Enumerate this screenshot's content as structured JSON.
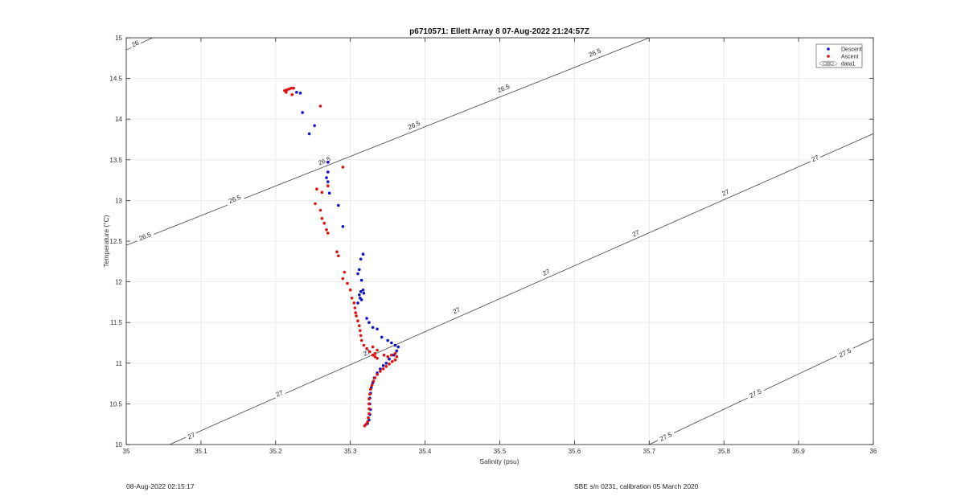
{
  "chart_data": {
    "type": "scatter",
    "title": "p6710571: Ellett Array 8 07-Aug-2022 21:24:57Z",
    "xlabel": "Salinity (psu)",
    "ylabel": "Temperature (°C)",
    "xlim": [
      35,
      36
    ],
    "ylim": [
      10,
      15
    ],
    "xticks": [
      "35",
      "35.1",
      "35.2",
      "35.3",
      "35.4",
      "35.5",
      "35.6",
      "35.7",
      "35.8",
      "35.9",
      "36"
    ],
    "yticks": [
      "10",
      "10.5",
      "11",
      "11.5",
      "12",
      "12.5",
      "13",
      "13.5",
      "14",
      "14.5",
      "15"
    ],
    "grid": true,
    "legend_position": "top-right",
    "colors": {
      "descent": "#1010c8",
      "ascent": "#e01010",
      "contour": "#444444"
    },
    "contour_lines": [
      {
        "level": "26",
        "points": [
          [
            35.0,
            14.85
          ],
          [
            35.035,
            15.0
          ]
        ]
      },
      {
        "level": "26.5",
        "points": [
          [
            35.0,
            12.45
          ],
          [
            35.7,
            15.0
          ]
        ]
      },
      {
        "level": "27",
        "points": [
          [
            35.058,
            10.0
          ],
          [
            36.0,
            13.82
          ]
        ]
      },
      {
        "level": "27.5",
        "points": [
          [
            35.7,
            10.0
          ],
          [
            36.0,
            11.3
          ]
        ]
      }
    ],
    "contour_labels": [
      {
        "text": "26",
        "x": 35.012,
        "y": 14.93
      },
      {
        "text": "26.5",
        "x": 35.025,
        "y": 12.56
      },
      {
        "text": "26.5",
        "x": 35.145,
        "y": 13.02
      },
      {
        "text": "26.5",
        "x": 35.265,
        "y": 13.49
      },
      {
        "text": "26.5",
        "x": 35.385,
        "y": 13.93
      },
      {
        "text": "26.5",
        "x": 35.505,
        "y": 14.38
      },
      {
        "text": "26.5",
        "x": 35.627,
        "y": 14.82
      },
      {
        "text": "27",
        "x": 35.087,
        "y": 10.11
      },
      {
        "text": "27",
        "x": 35.205,
        "y": 10.63
      },
      {
        "text": "27",
        "x": 35.322,
        "y": 11.13
      },
      {
        "text": "27",
        "x": 35.442,
        "y": 11.65
      },
      {
        "text": "27",
        "x": 35.562,
        "y": 12.12
      },
      {
        "text": "27",
        "x": 35.682,
        "y": 12.6
      },
      {
        "text": "27",
        "x": 35.802,
        "y": 13.1
      },
      {
        "text": "27",
        "x": 35.922,
        "y": 13.52
      },
      {
        "text": "27.5",
        "x": 35.722,
        "y": 10.1
      },
      {
        "text": "27.5",
        "x": 35.842,
        "y": 10.63
      },
      {
        "text": "27.5",
        "x": 35.962,
        "y": 11.13
      }
    ],
    "series": [
      {
        "name": "Descent",
        "points": [
          [
            35.228,
            14.33
          ],
          [
            35.233,
            14.32
          ],
          [
            35.236,
            14.08
          ],
          [
            35.252,
            13.92
          ],
          [
            35.245,
            13.82
          ],
          [
            35.27,
            13.47
          ],
          [
            35.27,
            13.35
          ],
          [
            35.268,
            13.28
          ],
          [
            35.27,
            13.23
          ],
          [
            35.272,
            13.09
          ],
          [
            35.284,
            12.94
          ],
          [
            35.29,
            12.68
          ],
          [
            35.317,
            12.34
          ],
          [
            35.314,
            12.28
          ],
          [
            35.312,
            12.15
          ],
          [
            35.31,
            12.1
          ],
          [
            35.315,
            12.02
          ],
          [
            35.317,
            11.9
          ],
          [
            35.314,
            11.88
          ],
          [
            35.318,
            11.86
          ],
          [
            35.312,
            11.84
          ],
          [
            35.313,
            11.8
          ],
          [
            35.315,
            11.78
          ],
          [
            35.31,
            11.74
          ],
          [
            35.322,
            11.55
          ],
          [
            35.325,
            11.5
          ],
          [
            35.33,
            11.44
          ],
          [
            35.336,
            11.42
          ],
          [
            35.342,
            11.32
          ],
          [
            35.35,
            11.28
          ],
          [
            35.355,
            11.25
          ],
          [
            35.36,
            11.22
          ],
          [
            35.364,
            11.2
          ],
          [
            35.362,
            11.15
          ],
          [
            35.358,
            11.1
          ],
          [
            35.352,
            11.05
          ],
          [
            35.348,
            11.0
          ],
          [
            35.344,
            10.97
          ],
          [
            35.34,
            10.93
          ],
          [
            35.336,
            10.88
          ],
          [
            35.332,
            10.82
          ],
          [
            35.33,
            10.76
          ],
          [
            35.328,
            10.7
          ],
          [
            35.327,
            10.63
          ],
          [
            35.326,
            10.57
          ],
          [
            35.326,
            10.5
          ],
          [
            35.327,
            10.43
          ],
          [
            35.326,
            10.37
          ],
          [
            35.325,
            10.3
          ],
          [
            35.323,
            10.26
          ]
        ]
      },
      {
        "name": "Ascent",
        "points": [
          [
            35.212,
            14.35
          ],
          [
            35.215,
            14.36
          ],
          [
            35.218,
            14.37
          ],
          [
            35.221,
            14.38
          ],
          [
            35.224,
            14.38
          ],
          [
            35.214,
            14.33
          ],
          [
            35.222,
            14.3
          ],
          [
            35.26,
            14.16
          ],
          [
            35.29,
            13.41
          ],
          [
            35.255,
            13.14
          ],
          [
            35.262,
            13.1
          ],
          [
            35.27,
            13.18
          ],
          [
            35.253,
            12.96
          ],
          [
            35.26,
            12.88
          ],
          [
            35.262,
            12.78
          ],
          [
            35.265,
            12.72
          ],
          [
            35.268,
            12.64
          ],
          [
            35.27,
            12.6
          ],
          [
            35.282,
            12.37
          ],
          [
            35.284,
            12.32
          ],
          [
            35.292,
            12.12
          ],
          [
            35.29,
            12.04
          ],
          [
            35.296,
            11.98
          ],
          [
            35.3,
            11.9
          ],
          [
            35.302,
            11.8
          ],
          [
            35.305,
            11.74
          ],
          [
            35.306,
            11.68
          ],
          [
            35.307,
            11.62
          ],
          [
            35.308,
            11.58
          ],
          [
            35.31,
            11.52
          ],
          [
            35.312,
            11.46
          ],
          [
            35.313,
            11.4
          ],
          [
            35.314,
            11.34
          ],
          [
            35.315,
            11.28
          ],
          [
            35.318,
            11.22
          ],
          [
            35.322,
            11.18
          ],
          [
            35.326,
            11.14
          ],
          [
            35.33,
            11.1
          ],
          [
            35.333,
            11.08
          ],
          [
            35.336,
            11.06
          ],
          [
            35.33,
            11.2
          ],
          [
            35.333,
            11.12
          ],
          [
            35.336,
            11.16
          ],
          [
            35.345,
            11.1
          ],
          [
            35.35,
            11.08
          ],
          [
            35.355,
            11.1
          ],
          [
            35.36,
            11.12
          ],
          [
            35.362,
            11.08
          ],
          [
            35.36,
            11.04
          ],
          [
            35.356,
            11.02
          ],
          [
            35.352,
            10.99
          ],
          [
            35.348,
            10.96
          ],
          [
            35.344,
            10.93
          ],
          [
            35.34,
            10.9
          ],
          [
            35.336,
            10.86
          ],
          [
            35.333,
            10.82
          ],
          [
            35.331,
            10.78
          ],
          [
            35.329,
            10.73
          ],
          [
            35.327,
            10.68
          ],
          [
            35.326,
            10.62
          ],
          [
            35.325,
            10.56
          ],
          [
            35.325,
            10.5
          ],
          [
            35.325,
            10.44
          ],
          [
            35.325,
            10.38
          ],
          [
            35.324,
            10.33
          ],
          [
            35.323,
            10.28
          ],
          [
            35.321,
            10.25
          ],
          [
            35.319,
            10.23
          ]
        ]
      }
    ],
    "legend": [
      "Descent",
      "Ascent",
      "data1"
    ]
  },
  "footer": {
    "left": "08-Aug-2022 02:15:17",
    "right": "SBE s/n 0231, calibration 05 March 2020"
  }
}
